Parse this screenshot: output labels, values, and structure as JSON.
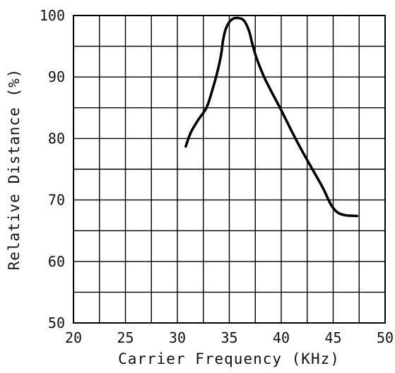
{
  "chart_data": {
    "type": "line",
    "title": "",
    "xlabel": "Carrier Frequency (KHz)",
    "ylabel": "Relative Distance (%)",
    "xlim": [
      20,
      50
    ],
    "ylim": [
      50,
      100
    ],
    "grid": true,
    "x_ticks": [
      20,
      25,
      30,
      35,
      40,
      45,
      50
    ],
    "y_ticks": [
      50,
      60,
      70,
      80,
      90,
      100
    ],
    "x_tick_labels": [
      "20",
      "25",
      "30",
      "35",
      "40",
      "45",
      "50"
    ],
    "y_tick_labels": [
      "50",
      "60",
      "70",
      "80",
      "90",
      "100"
    ],
    "series": [
      {
        "x": [
          30.8,
          31.3,
          32.0,
          32.8,
          33.3,
          33.8,
          34.2,
          34.4,
          34.7,
          35.2,
          35.8,
          36.4,
          36.9,
          37.2,
          37.6,
          38.3,
          39.0,
          40.0,
          41.0,
          42.0,
          43.0,
          44.0,
          44.7,
          45.2,
          45.6,
          46.2,
          47.3
        ],
        "y": [
          78.7,
          81.0,
          83.0,
          85.0,
          87.5,
          90.5,
          93.5,
          96.0,
          98.0,
          99.3,
          99.6,
          99.2,
          97.5,
          95.5,
          93.2,
          90.2,
          87.8,
          84.6,
          81.2,
          78.0,
          75.0,
          72.0,
          69.5,
          68.3,
          67.8,
          67.5,
          67.4
        ]
      }
    ]
  }
}
